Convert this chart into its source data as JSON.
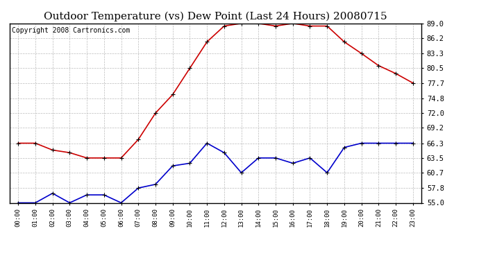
{
  "title": "Outdoor Temperature (vs) Dew Point (Last 24 Hours) 20080715",
  "copyright": "Copyright 2008 Cartronics.com",
  "hours": [
    "00:00",
    "01:00",
    "02:00",
    "03:00",
    "04:00",
    "05:00",
    "06:00",
    "07:00",
    "08:00",
    "09:00",
    "10:00",
    "11:00",
    "12:00",
    "13:00",
    "14:00",
    "15:00",
    "16:00",
    "17:00",
    "18:00",
    "19:00",
    "20:00",
    "21:00",
    "22:00",
    "23:00"
  ],
  "temp_red": [
    66.3,
    66.3,
    65.0,
    64.5,
    63.5,
    63.5,
    63.5,
    67.0,
    72.0,
    75.5,
    80.5,
    85.5,
    88.5,
    89.0,
    89.0,
    88.5,
    89.0,
    88.5,
    88.5,
    85.5,
    83.3,
    81.0,
    79.5,
    77.7
  ],
  "dew_blue": [
    55.0,
    55.0,
    56.8,
    55.0,
    56.5,
    56.5,
    55.0,
    57.8,
    58.5,
    62.0,
    62.5,
    66.3,
    64.5,
    60.7,
    63.5,
    63.5,
    62.5,
    63.5,
    60.7,
    65.5,
    66.3,
    66.3,
    66.3,
    66.3
  ],
  "yticks": [
    55.0,
    57.8,
    60.7,
    63.5,
    66.3,
    69.2,
    72.0,
    74.8,
    77.7,
    80.5,
    83.3,
    86.2,
    89.0
  ],
  "red_color": "#cc0000",
  "blue_color": "#0000cc",
  "bg_color": "#ffffff",
  "plot_bg": "#ffffff",
  "grid_color": "#bbbbbb",
  "title_fontsize": 11,
  "copyright_fontsize": 7
}
